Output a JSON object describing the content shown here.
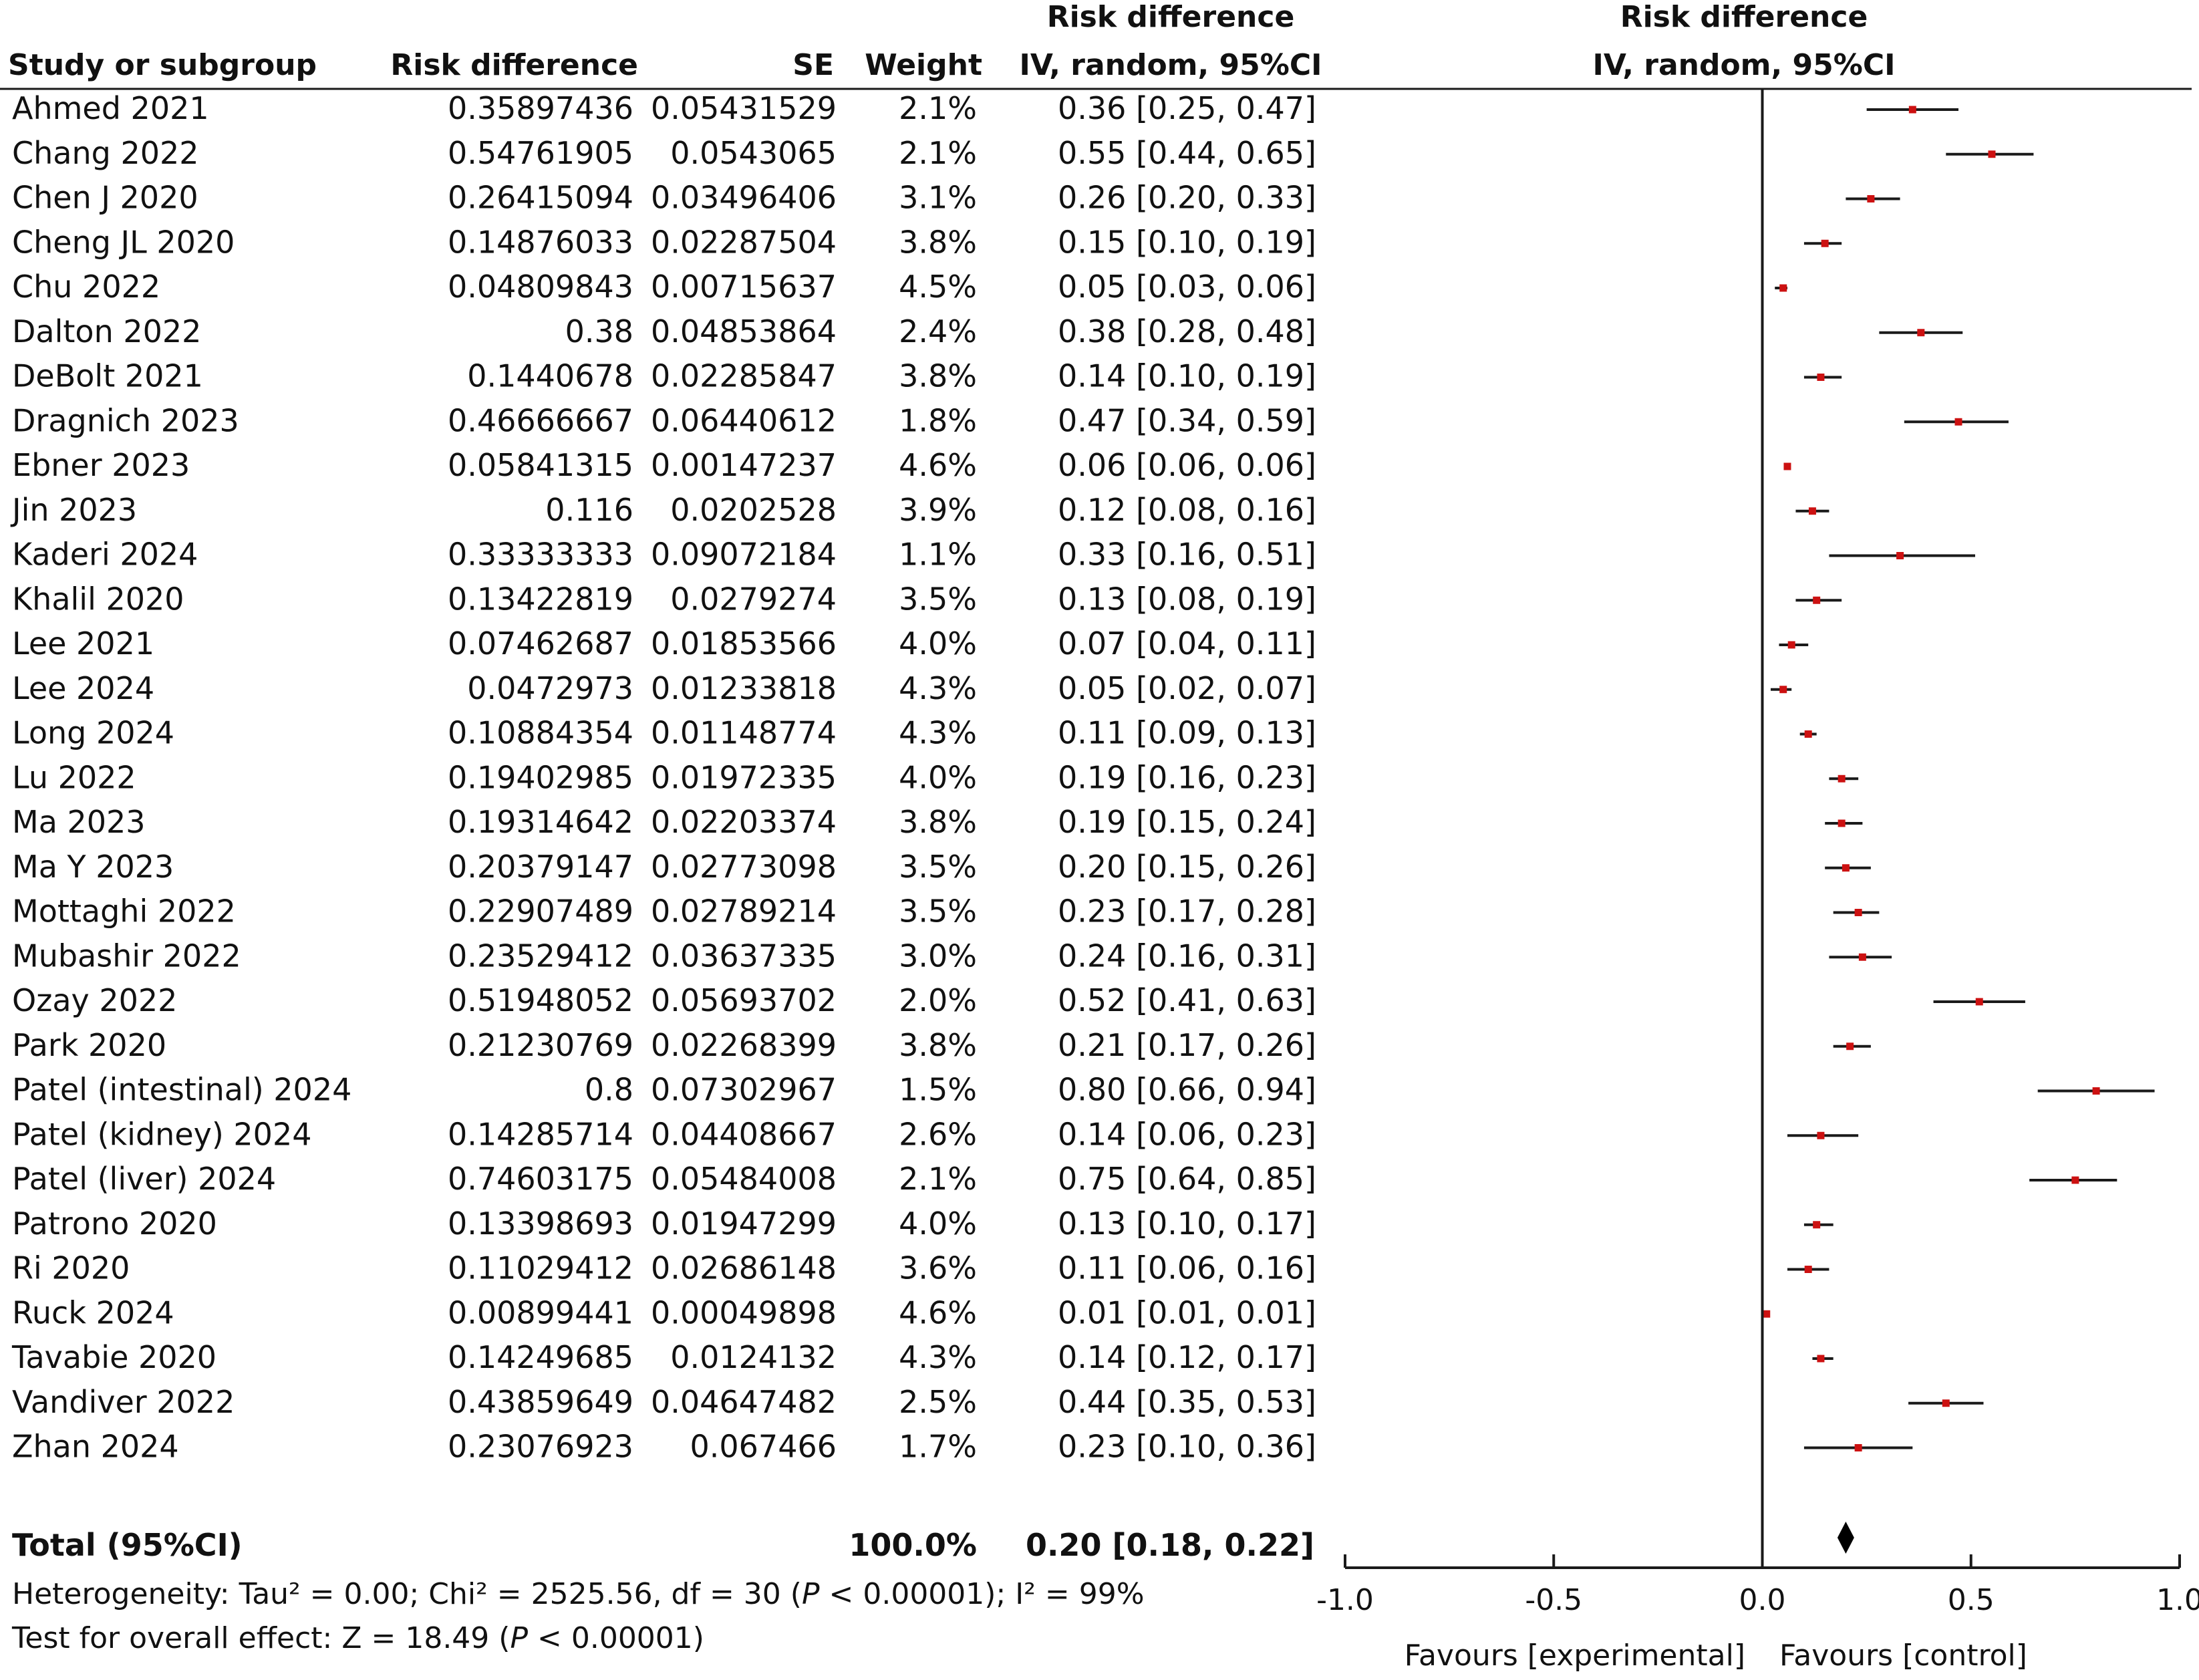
{
  "columns": {
    "study": "Study or subgroup",
    "rd": "Risk difference",
    "se": "SE",
    "weight": "Weight",
    "ci_title_1": "Risk difference",
    "ci_title_2": "IV, random, 95%CI",
    "plot_title_1": "Risk difference",
    "plot_title_2": "IV, random, 95%CI"
  },
  "total": {
    "label": "Total (95%CI)",
    "weight": "100.0%",
    "ci_text": "0.20 [0.18, 0.22]"
  },
  "heterogeneity": {
    "prefix": "Heterogeneity: Tau² = 0.00; Chi² = 2525.56, df = 30 (",
    "p_symbol": "P",
    "p_value": " < 0.00001); I² = 99%"
  },
  "overall_effect": {
    "prefix": "Test for overall effect: Z = 18.49 (",
    "p_symbol": "P",
    "p_value": " < 0.00001)"
  },
  "axis": {
    "favours_left": "Favours [experimental]",
    "favours_right": "Favours [control]"
  },
  "colors": {
    "point": "#cc1111",
    "line": "#1a1a1a",
    "diamond": "#000000"
  },
  "chart_data": {
    "type": "forest",
    "xlim": [
      -1.0,
      1.0
    ],
    "ticks": [
      -1.0,
      -0.5,
      0.0,
      0.5,
      1.0
    ],
    "tick_labels": [
      "-1.0",
      "-0.5",
      "0.0",
      "0.5",
      "1.0"
    ],
    "reference_line": 0.0,
    "studies": [
      {
        "name": "Ahmed 2021",
        "rd_text": "0.35897436",
        "se_text": "0.05431529",
        "weight": "2.1%",
        "ci_text": "0.36 [0.25, 0.47]",
        "est": 0.36,
        "lo": 0.25,
        "hi": 0.47
      },
      {
        "name": "Chang 2022",
        "rd_text": "0.54761905",
        "se_text": "0.0543065",
        "weight": "2.1%",
        "ci_text": "0.55 [0.44, 0.65]",
        "est": 0.55,
        "lo": 0.44,
        "hi": 0.65
      },
      {
        "name": "Chen J 2020",
        "rd_text": "0.26415094",
        "se_text": "0.03496406",
        "weight": "3.1%",
        "ci_text": "0.26 [0.20, 0.33]",
        "est": 0.26,
        "lo": 0.2,
        "hi": 0.33
      },
      {
        "name": "Cheng JL 2020",
        "rd_text": "0.14876033",
        "se_text": "0.02287504",
        "weight": "3.8%",
        "ci_text": "0.15 [0.10, 0.19]",
        "est": 0.15,
        "lo": 0.1,
        "hi": 0.19
      },
      {
        "name": "Chu 2022",
        "rd_text": "0.04809843",
        "se_text": "0.00715637",
        "weight": "4.5%",
        "ci_text": "0.05 [0.03, 0.06]",
        "est": 0.05,
        "lo": 0.03,
        "hi": 0.06
      },
      {
        "name": "Dalton 2022",
        "rd_text": "0.38",
        "se_text": "0.04853864",
        "weight": "2.4%",
        "ci_text": "0.38 [0.28, 0.48]",
        "est": 0.38,
        "lo": 0.28,
        "hi": 0.48
      },
      {
        "name": "DeBolt 2021",
        "rd_text": "0.1440678",
        "se_text": "0.02285847",
        "weight": "3.8%",
        "ci_text": "0.14 [0.10, 0.19]",
        "est": 0.14,
        "lo": 0.1,
        "hi": 0.19
      },
      {
        "name": "Dragnich 2023",
        "rd_text": "0.46666667",
        "se_text": "0.06440612",
        "weight": "1.8%",
        "ci_text": "0.47 [0.34, 0.59]",
        "est": 0.47,
        "lo": 0.34,
        "hi": 0.59
      },
      {
        "name": "Ebner 2023",
        "rd_text": "0.05841315",
        "se_text": "0.00147237",
        "weight": "4.6%",
        "ci_text": "0.06 [0.06, 0.06]",
        "est": 0.06,
        "lo": 0.06,
        "hi": 0.06
      },
      {
        "name": "Jin 2023",
        "rd_text": "0.116",
        "se_text": "0.0202528",
        "weight": "3.9%",
        "ci_text": "0.12 [0.08, 0.16]",
        "est": 0.12,
        "lo": 0.08,
        "hi": 0.16
      },
      {
        "name": "Kaderi 2024",
        "rd_text": "0.33333333",
        "se_text": "0.09072184",
        "weight": "1.1%",
        "ci_text": "0.33 [0.16, 0.51]",
        "est": 0.33,
        "lo": 0.16,
        "hi": 0.51
      },
      {
        "name": "Khalil 2020",
        "rd_text": "0.13422819",
        "se_text": "0.0279274",
        "weight": "3.5%",
        "ci_text": "0.13 [0.08, 0.19]",
        "est": 0.13,
        "lo": 0.08,
        "hi": 0.19
      },
      {
        "name": "Lee 2021",
        "rd_text": "0.07462687",
        "se_text": "0.01853566",
        "weight": "4.0%",
        "ci_text": "0.07 [0.04, 0.11]",
        "est": 0.07,
        "lo": 0.04,
        "hi": 0.11
      },
      {
        "name": "Lee 2024",
        "rd_text": "0.0472973",
        "se_text": "0.01233818",
        "weight": "4.3%",
        "ci_text": "0.05 [0.02, 0.07]",
        "est": 0.05,
        "lo": 0.02,
        "hi": 0.07
      },
      {
        "name": "Long 2024",
        "rd_text": "0.10884354",
        "se_text": "0.01148774",
        "weight": "4.3%",
        "ci_text": "0.11 [0.09, 0.13]",
        "est": 0.11,
        "lo": 0.09,
        "hi": 0.13
      },
      {
        "name": "Lu 2022",
        "rd_text": "0.19402985",
        "se_text": "0.01972335",
        "weight": "4.0%",
        "ci_text": "0.19 [0.16, 0.23]",
        "est": 0.19,
        "lo": 0.16,
        "hi": 0.23
      },
      {
        "name": "Ma 2023",
        "rd_text": "0.19314642",
        "se_text": "0.02203374",
        "weight": "3.8%",
        "ci_text": "0.19 [0.15, 0.24]",
        "est": 0.19,
        "lo": 0.15,
        "hi": 0.24
      },
      {
        "name": "Ma Y 2023",
        "rd_text": "0.20379147",
        "se_text": "0.02773098",
        "weight": "3.5%",
        "ci_text": "0.20 [0.15, 0.26]",
        "est": 0.2,
        "lo": 0.15,
        "hi": 0.26
      },
      {
        "name": "Mottaghi 2022",
        "rd_text": "0.22907489",
        "se_text": "0.02789214",
        "weight": "3.5%",
        "ci_text": "0.23 [0.17, 0.28]",
        "est": 0.23,
        "lo": 0.17,
        "hi": 0.28
      },
      {
        "name": "Mubashir 2022",
        "rd_text": "0.23529412",
        "se_text": "0.03637335",
        "weight": "3.0%",
        "ci_text": "0.24 [0.16, 0.31]",
        "est": 0.24,
        "lo": 0.16,
        "hi": 0.31
      },
      {
        "name": "Ozay 2022",
        "rd_text": "0.51948052",
        "se_text": "0.05693702",
        "weight": "2.0%",
        "ci_text": "0.52 [0.41, 0.63]",
        "est": 0.52,
        "lo": 0.41,
        "hi": 0.63
      },
      {
        "name": "Park 2020",
        "rd_text": "0.21230769",
        "se_text": "0.02268399",
        "weight": "3.8%",
        "ci_text": "0.21 [0.17, 0.26]",
        "est": 0.21,
        "lo": 0.17,
        "hi": 0.26
      },
      {
        "name": "Patel (intestinal) 2024",
        "rd_text": "0.8",
        "se_text": "0.07302967",
        "weight": "1.5%",
        "ci_text": "0.80 [0.66, 0.94]",
        "est": 0.8,
        "lo": 0.66,
        "hi": 0.94
      },
      {
        "name": "Patel (kidney) 2024",
        "rd_text": "0.14285714",
        "se_text": "0.04408667",
        "weight": "2.6%",
        "ci_text": "0.14 [0.06, 0.23]",
        "est": 0.14,
        "lo": 0.06,
        "hi": 0.23
      },
      {
        "name": "Patel (liver) 2024",
        "rd_text": "0.74603175",
        "se_text": "0.05484008",
        "weight": "2.1%",
        "ci_text": "0.75 [0.64, 0.85]",
        "est": 0.75,
        "lo": 0.64,
        "hi": 0.85
      },
      {
        "name": "Patrono 2020",
        "rd_text": "0.13398693",
        "se_text": "0.01947299",
        "weight": "4.0%",
        "ci_text": "0.13 [0.10, 0.17]",
        "est": 0.13,
        "lo": 0.1,
        "hi": 0.17
      },
      {
        "name": "Ri 2020",
        "rd_text": "0.11029412",
        "se_text": "0.02686148",
        "weight": "3.6%",
        "ci_text": "0.11 [0.06, 0.16]",
        "est": 0.11,
        "lo": 0.06,
        "hi": 0.16
      },
      {
        "name": "Ruck 2024",
        "rd_text": "0.00899441",
        "se_text": "0.00049898",
        "weight": "4.6%",
        "ci_text": "0.01 [0.01, 0.01]",
        "est": 0.01,
        "lo": 0.01,
        "hi": 0.01
      },
      {
        "name": "Tavabie 2020",
        "rd_text": "0.14249685",
        "se_text": "0.0124132",
        "weight": "4.3%",
        "ci_text": "0.14 [0.12, 0.17]",
        "est": 0.14,
        "lo": 0.12,
        "hi": 0.17
      },
      {
        "name": "Vandiver 2022",
        "rd_text": "0.43859649",
        "se_text": "0.04647482",
        "weight": "2.5%",
        "ci_text": "0.44 [0.35, 0.53]",
        "est": 0.44,
        "lo": 0.35,
        "hi": 0.53
      },
      {
        "name": "Zhan 2024",
        "rd_text": "0.23076923",
        "se_text": "0.067466",
        "weight": "1.7%",
        "ci_text": "0.23 [0.10, 0.36]",
        "est": 0.23,
        "lo": 0.1,
        "hi": 0.36
      }
    ],
    "pooled": {
      "est": 0.2,
      "lo": 0.18,
      "hi": 0.22
    }
  }
}
